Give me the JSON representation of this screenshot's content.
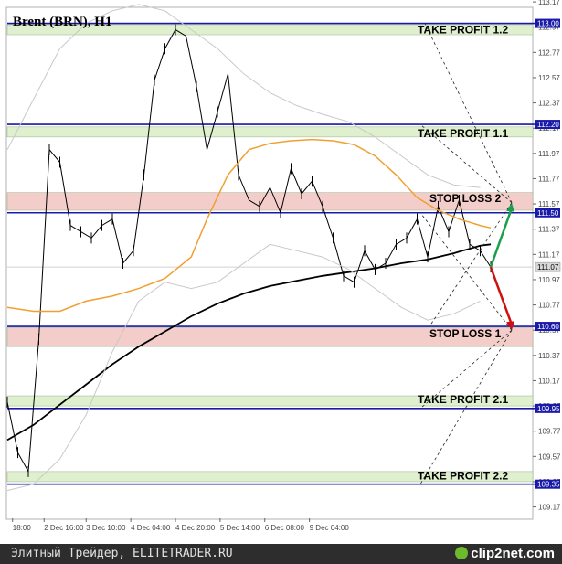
{
  "chart_data": {
    "type": "line",
    "title": "Brent (BRN), H1",
    "ylim": [
      109.08,
      113.12
    ],
    "yticks": [
      "113.17",
      "112.97",
      "112.77",
      "112.57",
      "112.37",
      "112.17",
      "111.97",
      "111.77",
      "111.57",
      "111.37",
      "111.17",
      "110.97",
      "110.77",
      "110.57",
      "110.37",
      "110.17",
      "109.97",
      "109.77",
      "109.57",
      "109.37",
      "109.17"
    ],
    "xticks": [
      "18:00",
      "2 Dec 16:00",
      "3 Dec 10:00",
      "4 Dec 04:00",
      "4 Dec 20:00",
      "5 Dec 14:00",
      "6 Dec 08:00",
      "9 Dec 04:00"
    ],
    "levels": [
      {
        "label": "TAKE PROFIT 1.2",
        "value": 113.0,
        "tag": "113.00",
        "zone": [
          112.91,
          112.99
        ],
        "zone_color": "#dff0cf"
      },
      {
        "label": "TAKE PROFIT 1.1",
        "value": 112.2,
        "tag": "112.20",
        "zone": [
          112.1,
          112.18
        ],
        "zone_color": "#dff0cf"
      },
      {
        "label": "STOP LOSS 2",
        "value": 111.5,
        "tag": "111.50",
        "zone": [
          111.52,
          111.66
        ],
        "zone_color": "#f3cdca"
      },
      {
        "label": "STOP LOSS 1",
        "value": 110.6,
        "tag": "110.60",
        "zone": [
          110.44,
          110.59
        ],
        "zone_color": "#f3cdca"
      },
      {
        "label": "TAKE PROFIT 2.1",
        "value": 109.95,
        "tag": "109.95",
        "zone": [
          109.97,
          110.05
        ],
        "zone_color": "#dff0cf"
      },
      {
        "label": "TAKE PROFIT 2.2",
        "value": 109.35,
        "tag": "109.35",
        "zone": [
          109.37,
          109.45
        ],
        "zone_color": "#dff0cf"
      }
    ],
    "current_price": {
      "value": 111.07,
      "tag": "111.07"
    },
    "scenario": {
      "start": [
        0.92,
        111.07
      ],
      "up": [
        0.96,
        111.58
      ],
      "down": [
        0.96,
        110.57
      ]
    },
    "series": [
      {
        "key": "price",
        "color": "#000000",
        "x": [
          0.0,
          0.02,
          0.04,
          0.06,
          0.08,
          0.1,
          0.12,
          0.14,
          0.16,
          0.18,
          0.2,
          0.22,
          0.24,
          0.26,
          0.28,
          0.3,
          0.32,
          0.34,
          0.36,
          0.38,
          0.4,
          0.42,
          0.44,
          0.46,
          0.48,
          0.5,
          0.52,
          0.54,
          0.56,
          0.58,
          0.6,
          0.62,
          0.64,
          0.66,
          0.68,
          0.7,
          0.72,
          0.74,
          0.76,
          0.78,
          0.8,
          0.82,
          0.84,
          0.86,
          0.88,
          0.9,
          0.92
        ],
        "y": [
          110.0,
          109.6,
          109.45,
          110.5,
          112.0,
          111.9,
          111.4,
          111.35,
          111.3,
          111.4,
          111.45,
          111.1,
          111.2,
          111.8,
          112.55,
          112.8,
          112.95,
          112.9,
          112.5,
          112.0,
          112.3,
          112.6,
          111.8,
          111.6,
          111.55,
          111.7,
          111.5,
          111.85,
          111.65,
          111.75,
          111.55,
          111.3,
          111.0,
          110.95,
          111.2,
          111.05,
          111.1,
          111.25,
          111.3,
          111.45,
          111.15,
          111.55,
          111.35,
          111.6,
          111.25,
          111.2,
          111.07
        ]
      },
      {
        "key": "ma-long",
        "color": "#000000",
        "x": [
          0.0,
          0.05,
          0.1,
          0.15,
          0.2,
          0.25,
          0.3,
          0.35,
          0.4,
          0.45,
          0.5,
          0.55,
          0.6,
          0.65,
          0.7,
          0.75,
          0.8,
          0.85,
          0.9,
          0.92
        ],
        "y": [
          109.7,
          109.82,
          109.98,
          110.14,
          110.3,
          110.44,
          110.56,
          110.68,
          110.78,
          110.86,
          110.92,
          110.96,
          111.0,
          111.03,
          111.06,
          111.1,
          111.13,
          111.18,
          111.24,
          111.25
        ]
      },
      {
        "key": "ma-short",
        "color": "#f0a030",
        "x": [
          0.0,
          0.05,
          0.1,
          0.15,
          0.2,
          0.25,
          0.3,
          0.35,
          0.38,
          0.42,
          0.46,
          0.5,
          0.54,
          0.58,
          0.62,
          0.66,
          0.7,
          0.74,
          0.78,
          0.82,
          0.86,
          0.9,
          0.92
        ],
        "y": [
          110.75,
          110.72,
          110.72,
          110.8,
          110.84,
          110.9,
          110.98,
          111.15,
          111.45,
          111.8,
          112.0,
          112.05,
          112.07,
          112.08,
          112.07,
          112.04,
          111.95,
          111.8,
          111.62,
          111.52,
          111.45,
          111.4,
          111.38
        ]
      },
      {
        "key": "band-upper",
        "color": "#c8c8c8",
        "x": [
          0.0,
          0.05,
          0.1,
          0.15,
          0.2,
          0.25,
          0.3,
          0.35,
          0.4,
          0.45,
          0.5,
          0.55,
          0.6,
          0.65,
          0.7,
          0.75,
          0.8,
          0.85,
          0.9
        ],
        "y": [
          112.0,
          112.4,
          112.8,
          113.0,
          113.1,
          113.15,
          113.1,
          112.95,
          112.8,
          112.6,
          112.45,
          112.35,
          112.28,
          112.22,
          112.1,
          111.95,
          111.8,
          111.72,
          111.7
        ]
      },
      {
        "key": "band-lower",
        "color": "#c8c8c8",
        "x": [
          0.0,
          0.05,
          0.1,
          0.15,
          0.2,
          0.25,
          0.3,
          0.35,
          0.4,
          0.45,
          0.5,
          0.55,
          0.6,
          0.65,
          0.7,
          0.75,
          0.8,
          0.85,
          0.9
        ],
        "y": [
          109.3,
          109.35,
          109.55,
          109.9,
          110.4,
          110.8,
          110.95,
          110.9,
          110.95,
          111.1,
          111.25,
          111.2,
          111.15,
          111.05,
          110.9,
          110.75,
          110.65,
          110.7,
          110.8
        ]
      }
    ]
  },
  "footer": {
    "left_text": "Элитный Трейдер, ELITETRADER.RU",
    "brand": "clip2net.com"
  }
}
